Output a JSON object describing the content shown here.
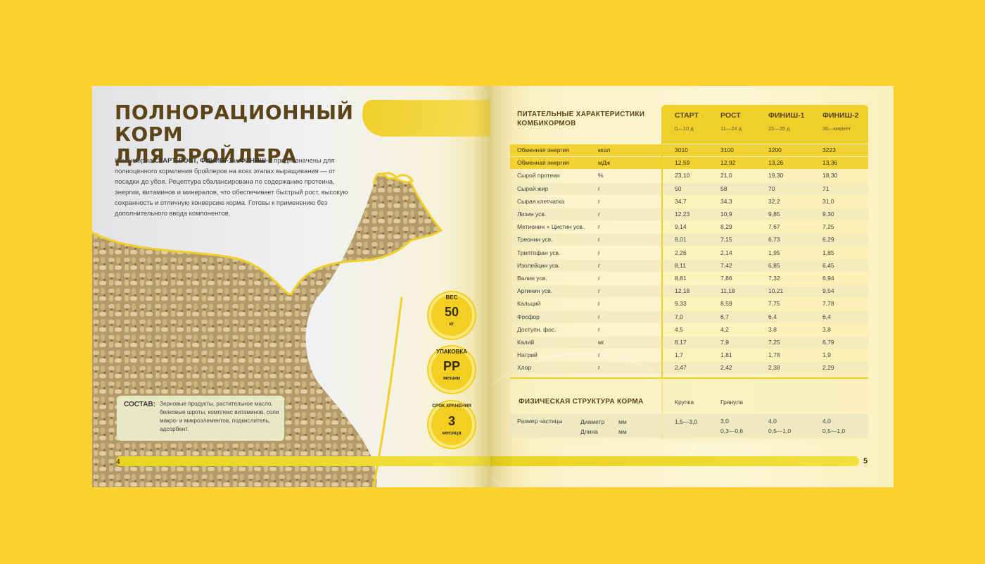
{
  "left_page": {
    "title_line1": "ПОЛНОРАЦИОННЫЙ КОРМ",
    "title_line2": "ДЛЯ БРОЙЛЕРА",
    "intro": {
      "part1": "Комбикорма ",
      "bold1": "СТАРТ, РОСТ, ФИНИШ-1",
      "part2": " и ",
      "bold2": "ФИНИШ-2",
      "part3": " предназначены для полноценного кормления бройлеров на всех этапах выращивания — от посадки до убоя. Рецептура сбалансирована по содержанию протеина, энергии, витаминов и минералов, что обеспечивает быстрый рост, высокую сохранность и отличную конверсию корма. Готовы к применению без дополнительного ввода компонентов."
    },
    "composition_label": "СОСТАВ:",
    "composition_text": "Зерновые продукты, растительное масло, белковые шроты, комплекс витаминов, соли макро- и микроэлементов, подкислитель, адсорбент.",
    "page_number": "4",
    "badges": [
      {
        "caption": "ВЕС",
        "value": "50",
        "unit": "кг"
      },
      {
        "caption": "УПАКОВКА",
        "value": "PP",
        "unit": "мешки"
      },
      {
        "caption": "СРОК ХРАНЕНИЯ",
        "value": "3",
        "unit": "месяца"
      }
    ]
  },
  "right_page": {
    "nutrition_title_line1": "ПИТАТЕЛЬНЫЕ ХАРАКТЕРИСТИКИ",
    "nutrition_title_line2": "КОМБИКОРМОВ",
    "columns": [
      {
        "name": "СТАРТ",
        "period": "0—10 д"
      },
      {
        "name": "РОСТ",
        "period": "11—24 д"
      },
      {
        "name": "ФИНИШ-1",
        "period": "25—35 д"
      },
      {
        "name": "ФИНИШ-2",
        "period": "36—маркет"
      }
    ],
    "rows": [
      {
        "name": "Обменная энергия",
        "unit": "ккал",
        "values": [
          "3010",
          "3100",
          "3200",
          "3223"
        ],
        "highlight": true
      },
      {
        "name": "Обменная энергия",
        "unit": "мДж",
        "values": [
          "12,59",
          "12,92",
          "13,26",
          "13,36"
        ],
        "highlight": true
      },
      {
        "name": "Сырой протеин",
        "unit": "%",
        "values": [
          "23,10",
          "21,0",
          "19,30",
          "18,30"
        ]
      },
      {
        "name": "Сырой жир",
        "unit": "г",
        "values": [
          "50",
          "58",
          "70",
          "71"
        ]
      },
      {
        "name": "Сырая клетчатка",
        "unit": "г",
        "values": [
          "34,7",
          "34,3",
          "32,2",
          "31,0"
        ]
      },
      {
        "name": "Лизин усв.",
        "unit": "г",
        "values": [
          "12,23",
          "10,9",
          "9,85",
          "9,30"
        ]
      },
      {
        "name": "Метионин + Цистин усв.",
        "unit": "г",
        "values": [
          "9,14",
          "8,29",
          "7,67",
          "7,25"
        ]
      },
      {
        "name": "Треонин усв.",
        "unit": "г",
        "values": [
          "8,01",
          "7,15",
          "6,73",
          "6,29"
        ]
      },
      {
        "name": "Триптофан усв.",
        "unit": "г",
        "values": [
          "2,26",
          "2,14",
          "1,95",
          "1,85"
        ]
      },
      {
        "name": "Изолейцин усв.",
        "unit": "г",
        "values": [
          "8,11",
          "7,42",
          "6,85",
          "6,45"
        ]
      },
      {
        "name": "Валин усв.",
        "unit": "г",
        "values": [
          "8,81",
          "7,86",
          "7,32",
          "6,94"
        ]
      },
      {
        "name": "Аргинин усв.",
        "unit": "г",
        "values": [
          "12,18",
          "11,18",
          "10,21",
          "9,54"
        ]
      },
      {
        "name": "Кальций",
        "unit": "г",
        "values": [
          "9,33",
          "8,59",
          "7,75",
          "7,78"
        ]
      },
      {
        "name": "Фосфор",
        "unit": "г",
        "values": [
          "7,0",
          "6,7",
          "6,4",
          "6,4"
        ]
      },
      {
        "name": "Доступн. фос.",
        "unit": "г",
        "values": [
          "4,5",
          "4,2",
          "3,8",
          "3,8"
        ]
      },
      {
        "name": "Калий",
        "unit": "мг",
        "values": [
          "8,17",
          "7,9",
          "7,25",
          "6,79"
        ]
      },
      {
        "name": "Натрий",
        "unit": "г",
        "values": [
          "1,7",
          "1,81",
          "1,78",
          "1,9"
        ]
      },
      {
        "name": "Хлор",
        "unit": "г",
        "values": [
          "2,47",
          "2,42",
          "2,38",
          "2,29"
        ]
      }
    ],
    "physical": {
      "title": "ФИЗИЧЕСКАЯ СТРУКТУРА КОРМА",
      "head1": "Крупка",
      "head2": "Гранула",
      "row_label": "Размер частицы",
      "sub1": "Диаметр",
      "sub2": "Длина",
      "unit1": "мм",
      "unit2": "мм",
      "start": "1,5—3,0",
      "growth_d": "3,0",
      "growth_l": "0,3—0,6",
      "finish1_d": "4,0",
      "finish1_l": "0,5—1,0",
      "finish2_d": "4,0",
      "finish2_l": "0,5—1,0"
    },
    "page_number": "5"
  },
  "colors": {
    "background": "#FDD12E",
    "accent": "#F0CF2A",
    "title_brown": "#5A4418"
  }
}
